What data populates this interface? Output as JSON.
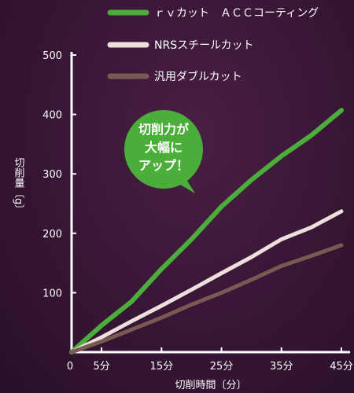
{
  "chart_data": {
    "type": "line",
    "title": "",
    "xlabel": "切削時間〔分〕",
    "ylabel": "切削量〔g〕",
    "xlim": [
      0,
      45
    ],
    "ylim": [
      0,
      500
    ],
    "x_ticks": [
      {
        "value": 0,
        "label": "0"
      },
      {
        "value": 5,
        "label": "5分"
      },
      {
        "value": 15,
        "label": "15分"
      },
      {
        "value": 25,
        "label": "25分"
      },
      {
        "value": 35,
        "label": "35分"
      },
      {
        "value": 45,
        "label": "45分"
      }
    ],
    "y_ticks": [
      {
        "value": 100,
        "label": "100"
      },
      {
        "value": 200,
        "label": "200"
      },
      {
        "value": 300,
        "label": "300"
      },
      {
        "value": 400,
        "label": "400"
      },
      {
        "value": 500,
        "label": "500"
      }
    ],
    "legend_position": "top-right",
    "grid": false,
    "series": [
      {
        "name": "ｒｖカット　ＡＣＣコーティング",
        "color": "#4cae3a",
        "points": [
          [
            0,
            0
          ],
          [
            5,
            45
          ],
          [
            10,
            85
          ],
          [
            15,
            140
          ],
          [
            20,
            190
          ],
          [
            25,
            245
          ],
          [
            30,
            290
          ],
          [
            35,
            330
          ],
          [
            40,
            365
          ],
          [
            45,
            407
          ]
        ]
      },
      {
        "name": "NRSスチールカット",
        "color": "#ede0dc",
        "points": [
          [
            0,
            0
          ],
          [
            5,
            25
          ],
          [
            10,
            52
          ],
          [
            15,
            78
          ],
          [
            20,
            105
          ],
          [
            25,
            133
          ],
          [
            30,
            160
          ],
          [
            35,
            190
          ],
          [
            40,
            210
          ],
          [
            45,
            237
          ]
        ]
      },
      {
        "name": "汎用ダブルカット",
        "color": "#7a5a50",
        "points": [
          [
            0,
            0
          ],
          [
            5,
            18
          ],
          [
            10,
            38
          ],
          [
            15,
            58
          ],
          [
            20,
            80
          ],
          [
            25,
            100
          ],
          [
            30,
            122
          ],
          [
            35,
            145
          ],
          [
            40,
            162
          ],
          [
            45,
            180
          ]
        ]
      }
    ],
    "annotation": {
      "lines": [
        "切削力が",
        "大幅に",
        "アップ！"
      ],
      "color": "#4cae3a"
    }
  }
}
